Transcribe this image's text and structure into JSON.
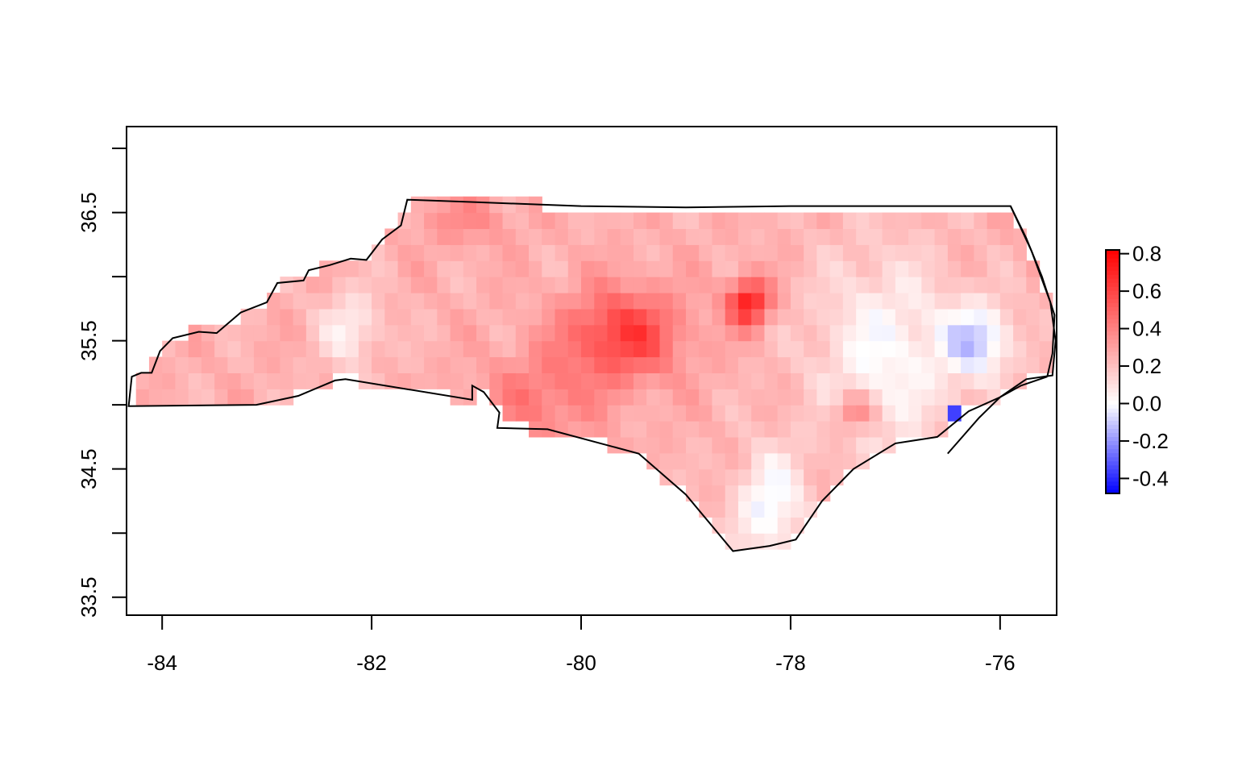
{
  "chart_data": {
    "type": "heatmap",
    "title": "",
    "xlabel": "",
    "ylabel": "",
    "xlim": [
      -84.34,
      -75.46
    ],
    "ylim": [
      33.36,
      37.17
    ],
    "x_ticks": [
      {
        "value": -84,
        "label": "-84"
      },
      {
        "value": -82,
        "label": "-82"
      },
      {
        "value": -80,
        "label": "-80"
      },
      {
        "value": -78,
        "label": "-78"
      },
      {
        "value": -76,
        "label": "-76"
      }
    ],
    "y_ticks": [
      {
        "value": 33.5,
        "label": "33.5"
      },
      {
        "value": 34.0,
        "label": ""
      },
      {
        "value": 34.5,
        "label": "34.5"
      },
      {
        "value": 35.0,
        "label": ""
      },
      {
        "value": 35.5,
        "label": "35.5"
      },
      {
        "value": 36.0,
        "label": ""
      },
      {
        "value": 36.5,
        "label": "36.5"
      },
      {
        "value": 37.0,
        "label": ""
      }
    ],
    "colorbar": {
      "range": [
        -0.48,
        0.82
      ],
      "colors": {
        "low": "#0000ff",
        "mid": "#ffffff",
        "high": "#ff0000"
      },
      "ticks": [
        {
          "value": 0.8,
          "label": "0.8"
        },
        {
          "value": 0.6,
          "label": "0.6"
        },
        {
          "value": 0.4,
          "label": "0.4"
        },
        {
          "value": 0.2,
          "label": "0.2"
        },
        {
          "value": 0.0,
          "label": "0.0"
        },
        {
          "value": -0.2,
          "label": "-0.2"
        },
        {
          "value": -0.4,
          "label": "-0.4"
        }
      ]
    },
    "field": {
      "base_value": 0.25,
      "features": [
        {
          "lon": -79.6,
          "lat": 35.55,
          "sx": 0.55,
          "sy": 0.35,
          "amp": 0.38
        },
        {
          "lon": -80.4,
          "lat": 35.05,
          "sx": 0.55,
          "sy": 0.35,
          "amp": 0.18
        },
        {
          "lon": -78.4,
          "lat": 35.8,
          "sx": 0.2,
          "sy": 0.18,
          "amp": 0.5
        },
        {
          "lon": -81.1,
          "lat": 36.45,
          "sx": 0.45,
          "sy": 0.2,
          "amp": 0.12
        },
        {
          "lon": -77.1,
          "lat": 35.4,
          "sx": 0.7,
          "sy": 0.8,
          "amp": -0.24
        },
        {
          "lon": -76.2,
          "lat": 35.5,
          "sx": 0.35,
          "sy": 0.3,
          "amp": -0.32
        },
        {
          "lon": -78.2,
          "lat": 34.2,
          "sx": 0.35,
          "sy": 0.45,
          "amp": -0.28
        },
        {
          "lon": -76.4,
          "lat": 34.95,
          "sx": 0.08,
          "sy": 0.07,
          "amp": -0.7
        },
        {
          "lon": -82.2,
          "lat": 35.6,
          "sx": 0.3,
          "sy": 0.3,
          "amp": -0.2
        },
        {
          "lon": -77.4,
          "lat": 34.95,
          "sx": 0.2,
          "sy": 0.15,
          "amp": 0.25
        }
      ]
    },
    "outline": {
      "mainland": [
        [
          -84.32,
          34.99
        ],
        [
          -84.29,
          35.22
        ],
        [
          -84.2,
          35.25
        ],
        [
          -84.1,
          35.25
        ],
        [
          -84.02,
          35.42
        ],
        [
          -83.9,
          35.52
        ],
        [
          -83.65,
          35.57
        ],
        [
          -83.48,
          35.56
        ],
        [
          -83.25,
          35.72
        ],
        [
          -83.0,
          35.8
        ],
        [
          -82.9,
          35.95
        ],
        [
          -82.65,
          35.97
        ],
        [
          -82.6,
          36.05
        ],
        [
          -82.4,
          36.09
        ],
        [
          -82.2,
          36.14
        ],
        [
          -82.05,
          36.13
        ],
        [
          -81.9,
          36.29
        ],
        [
          -81.72,
          36.4
        ],
        [
          -81.66,
          36.6
        ],
        [
          -81.0,
          36.58
        ],
        [
          -80.0,
          36.55
        ],
        [
          -79.0,
          36.54
        ],
        [
          -78.0,
          36.55
        ],
        [
          -77.0,
          36.55
        ],
        [
          -76.0,
          36.55
        ],
        [
          -75.9,
          36.55
        ],
        [
          -75.7,
          36.2
        ],
        [
          -75.52,
          35.8
        ],
        [
          -75.47,
          35.5
        ],
        [
          -75.5,
          35.23
        ],
        [
          -75.75,
          35.2
        ],
        [
          -76.0,
          35.06
        ],
        [
          -76.3,
          34.95
        ],
        [
          -76.6,
          34.75
        ],
        [
          -77.0,
          34.7
        ],
        [
          -77.4,
          34.5
        ],
        [
          -77.7,
          34.25
        ],
        [
          -77.95,
          33.95
        ],
        [
          -78.2,
          33.9
        ],
        [
          -78.55,
          33.86
        ],
        [
          -79.0,
          34.3
        ],
        [
          -79.45,
          34.62
        ],
        [
          -80.32,
          34.81
        ],
        [
          -80.8,
          34.82
        ],
        [
          -80.78,
          34.94
        ],
        [
          -80.93,
          35.1
        ],
        [
          -81.04,
          35.15
        ],
        [
          -81.04,
          35.04
        ],
        [
          -82.25,
          35.2
        ],
        [
          -82.35,
          35.19
        ],
        [
          -82.7,
          35.07
        ],
        [
          -83.1,
          35.0
        ],
        [
          -84.32,
          34.99
        ]
      ],
      "islands": [
        [
          [
            -75.9,
            36.55
          ],
          [
            -75.75,
            36.3
          ],
          [
            -75.6,
            36.0
          ],
          [
            -75.48,
            35.7
          ],
          [
            -75.5,
            35.4
          ],
          [
            -75.55,
            35.22
          ]
        ],
        [
          [
            -75.55,
            35.22
          ],
          [
            -75.8,
            35.15
          ],
          [
            -76.0,
            35.06
          ]
        ],
        [
          [
            -76.0,
            35.06
          ],
          [
            -76.2,
            34.9
          ],
          [
            -76.5,
            34.62
          ]
        ]
      ]
    }
  }
}
